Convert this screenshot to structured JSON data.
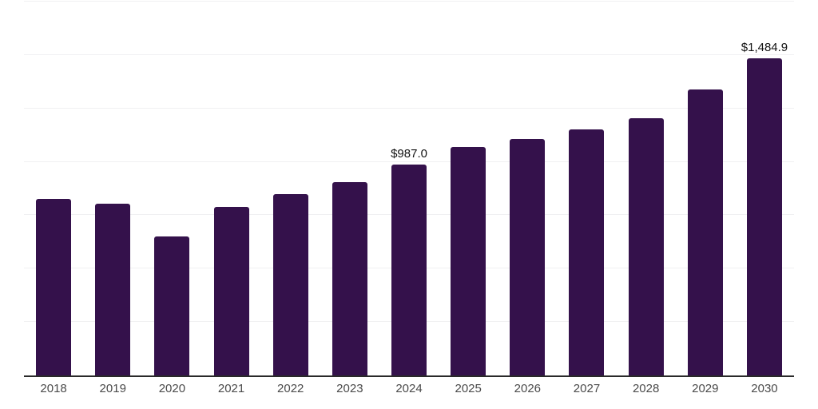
{
  "chart_data": {
    "type": "bar",
    "title": "",
    "xlabel": "",
    "ylabel": "",
    "categories": [
      "2018",
      "2019",
      "2020",
      "2021",
      "2022",
      "2023",
      "2024",
      "2025",
      "2026",
      "2027",
      "2028",
      "2029",
      "2030"
    ],
    "values": [
      826,
      804,
      652,
      788,
      850,
      906,
      987.0,
      1068,
      1108,
      1153,
      1203,
      1338,
      1484.9
    ],
    "value_labels": [
      "",
      "",
      "",
      "",
      "",
      "",
      "$987.0",
      "",
      "",
      "",
      "",
      "",
      "$1,484.9"
    ],
    "ylim": [
      0,
      1750
    ],
    "gridline_step": 250,
    "grid": "horizontal-only",
    "legend": "none",
    "note": "Only 2024 and 2030 bars carry visible data labels; other values estimated from bar heights"
  },
  "style": {
    "bar_color": "#34114B",
    "background_color": "#ffffff",
    "gridline_color": "#f0f0f2",
    "axis_line_color": "#2a2a2a",
    "value_label_color": "#111111",
    "tick_label_color": "#4a4a4a"
  }
}
